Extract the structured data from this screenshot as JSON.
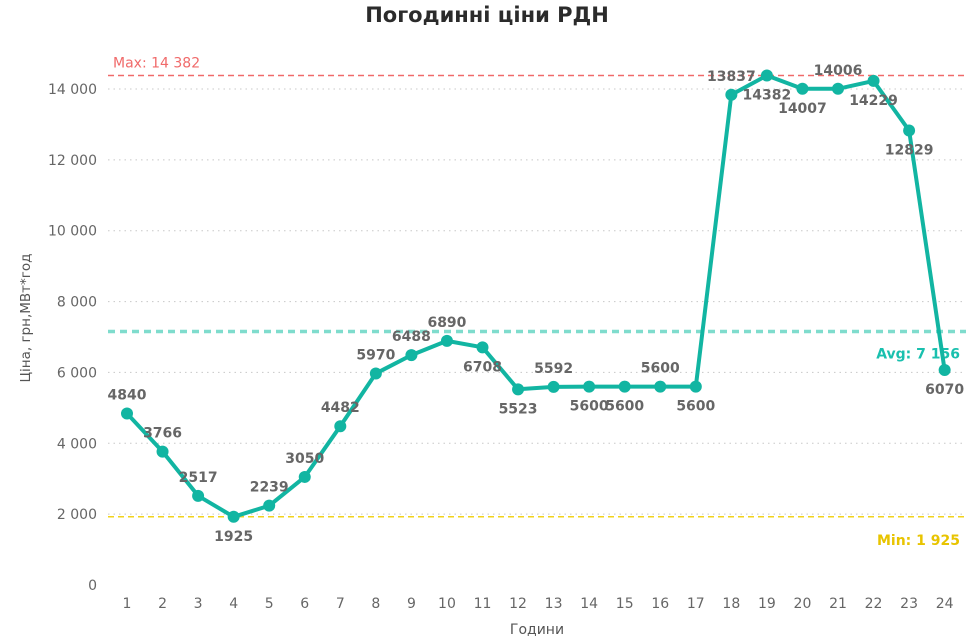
{
  "chart_data": {
    "type": "line",
    "title": "Погодинні ціни РДН",
    "xlabel": "Години",
    "ylabel": "Ціна, грн,МВт*год",
    "categories": [
      "1",
      "2",
      "3",
      "4",
      "5",
      "6",
      "7",
      "8",
      "9",
      "10",
      "11",
      "12",
      "13",
      "14",
      "15",
      "16",
      "17",
      "18",
      "19",
      "20",
      "21",
      "22",
      "23",
      "24"
    ],
    "values": [
      4840,
      3766,
      2517,
      1925,
      2239,
      3050,
      4482,
      5970,
      6488,
      6890,
      6708,
      5523,
      5592,
      5600,
      5600,
      5600,
      5600,
      13837,
      14382,
      14007,
      14006,
      14229,
      12829,
      6070
    ],
    "ylim": [
      0,
      14800
    ],
    "yticks": [
      0,
      2000,
      4000,
      6000,
      8000,
      10000,
      12000,
      14000
    ],
    "ytick_labels": [
      "0",
      "2 000",
      "4 000",
      "6 000",
      "8 000",
      "10 000",
      "12 000",
      "14 000"
    ],
    "grid": "horizontal dotted",
    "reference_lines": {
      "max": {
        "label": "Max: 14 382",
        "value": 14382,
        "color": "#f06a6a"
      },
      "avg": {
        "label": "Avg: 7 156",
        "value": 7156,
        "color": "#7fdccd"
      },
      "min": {
        "label": "Min: 1 925",
        "value": 1925,
        "color": "#f2d31b"
      }
    },
    "line_color": "#12b5a2",
    "label_color": "#666666"
  }
}
